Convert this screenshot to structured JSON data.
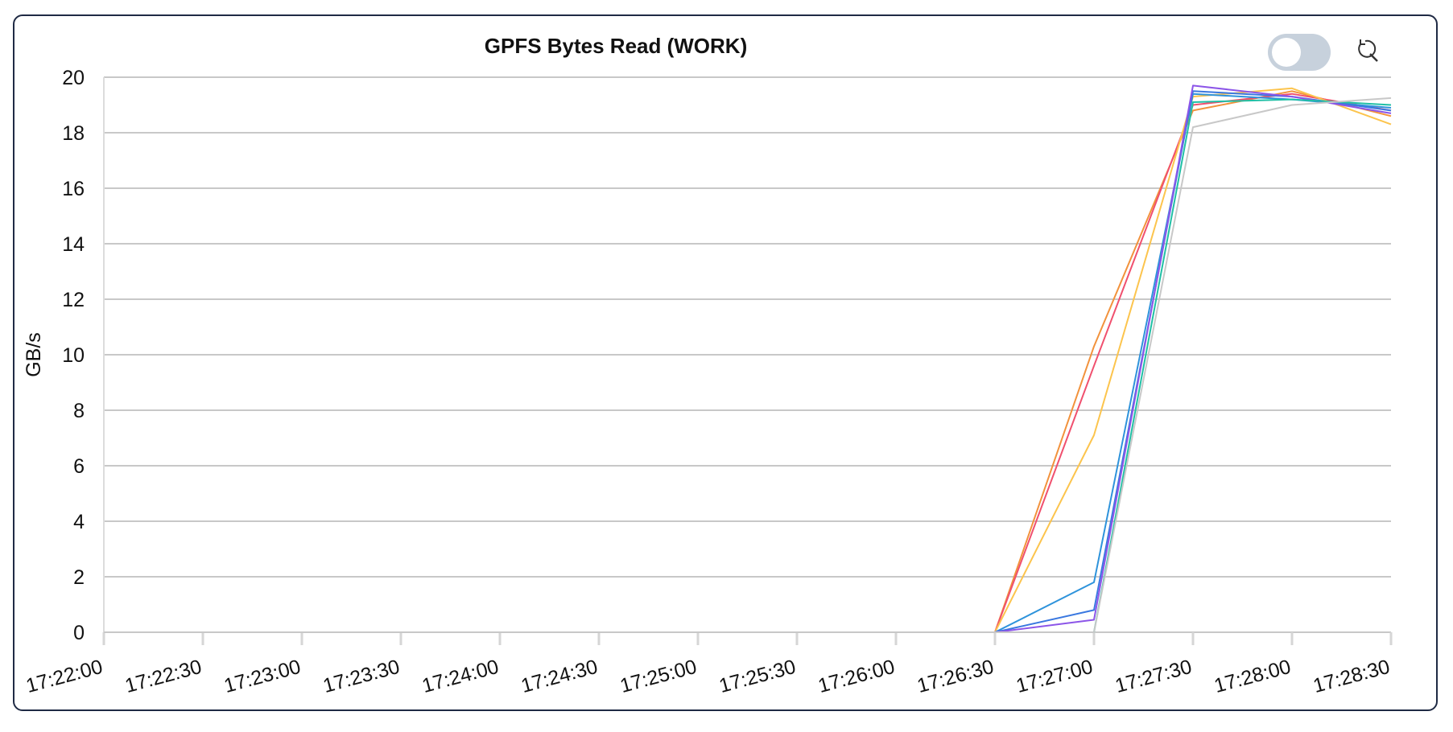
{
  "title": "GPFS Bytes Read (WORK)",
  "toggle": {
    "state": "off"
  },
  "reset_icon": "zoom-reset-icon",
  "chart_data": {
    "type": "line",
    "title": "GPFS Bytes Read (WORK)",
    "ylabel": "GB/s",
    "xlabel": "",
    "ylim": [
      0,
      20
    ],
    "y_ticks": [
      "0",
      "2",
      "4",
      "6",
      "8",
      "10",
      "12",
      "14",
      "16",
      "18",
      "20"
    ],
    "x_ticks": [
      "17:22:00",
      "17:22:30",
      "17:23:00",
      "17:23:30",
      "17:24:00",
      "17:24:30",
      "17:25:00",
      "17:25:30",
      "17:26:00",
      "17:26:30",
      "17:27:00",
      "17:27:30",
      "17:28:00",
      "17:28:30"
    ],
    "grid": true,
    "legend": "none",
    "x": [
      "17:22:00",
      "17:22:30",
      "17:23:00",
      "17:23:30",
      "17:24:00",
      "17:24:30",
      "17:25:00",
      "17:25:30",
      "17:26:00",
      "17:26:30",
      "17:27:00",
      "17:27:30",
      "17:28:00",
      "17:28:30"
    ],
    "series": [
      {
        "color": "#f2923c",
        "values": [
          0,
          0,
          0,
          0,
          0,
          0,
          0,
          0,
          0,
          0,
          10.3,
          18.8,
          19.5,
          18.6
        ]
      },
      {
        "color": "#f0506e",
        "values": [
          0,
          0,
          0,
          0,
          0,
          0,
          0,
          0,
          0,
          0,
          9.6,
          19.0,
          19.4,
          18.8
        ]
      },
      {
        "color": "#fcc44d",
        "values": [
          0,
          0,
          0,
          0,
          0,
          0,
          0,
          0,
          0,
          0,
          7.1,
          19.3,
          19.6,
          18.3
        ]
      },
      {
        "color": "#2e93db",
        "values": [
          0,
          0,
          0,
          0,
          0,
          0,
          0,
          0,
          0,
          0,
          1.8,
          19.4,
          19.2,
          18.9
        ]
      },
      {
        "color": "#3a78e0",
        "values": [
          0,
          0,
          0,
          0,
          0,
          0,
          0,
          0,
          0,
          0,
          0.8,
          19.5,
          19.3,
          18.8
        ]
      },
      {
        "color": "#8c55e8",
        "values": [
          0,
          0,
          0,
          0,
          0,
          0,
          0,
          0,
          0,
          0,
          0.45,
          19.7,
          19.3,
          18.7
        ]
      },
      {
        "color": "#20bfa5",
        "values": [
          0,
          0,
          0,
          0,
          0,
          0,
          0,
          0,
          0,
          0,
          0,
          19.1,
          19.2,
          19.0
        ]
      },
      {
        "color": "#c8c8c8",
        "values": [
          0,
          0,
          0,
          0,
          0,
          0,
          0,
          0,
          0,
          0,
          0,
          18.2,
          19.0,
          19.25
        ]
      }
    ]
  }
}
